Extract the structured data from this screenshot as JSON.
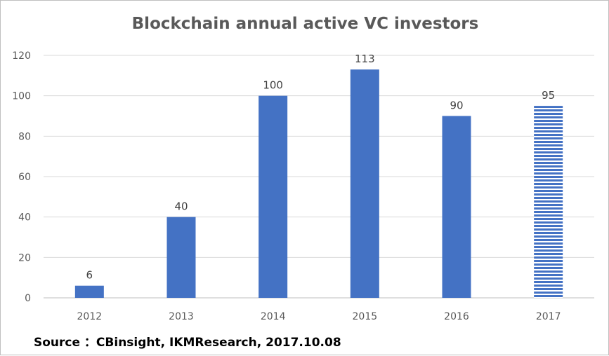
{
  "chart_data": {
    "type": "bar",
    "title": "Blockchain annual active VC investors",
    "categories": [
      "2012",
      "2013",
      "2014",
      "2015",
      "2016",
      "2017"
    ],
    "values": [
      6,
      40,
      100,
      113,
      90,
      95
    ],
    "data_labels": [
      "6",
      "40",
      "100",
      "113",
      "90",
      "95"
    ],
    "y_ticks": [
      "0",
      "20",
      "40",
      "60",
      "80",
      "100",
      "120"
    ],
    "ylim": [
      0,
      120
    ],
    "xlabel": "",
    "ylabel": "",
    "grid": true,
    "legend": "none",
    "bar_color": "#4472c4",
    "striped_categories": [
      "2017"
    ]
  },
  "source": "Source ：CBinsight, IKMResearch, 2017.10.08"
}
